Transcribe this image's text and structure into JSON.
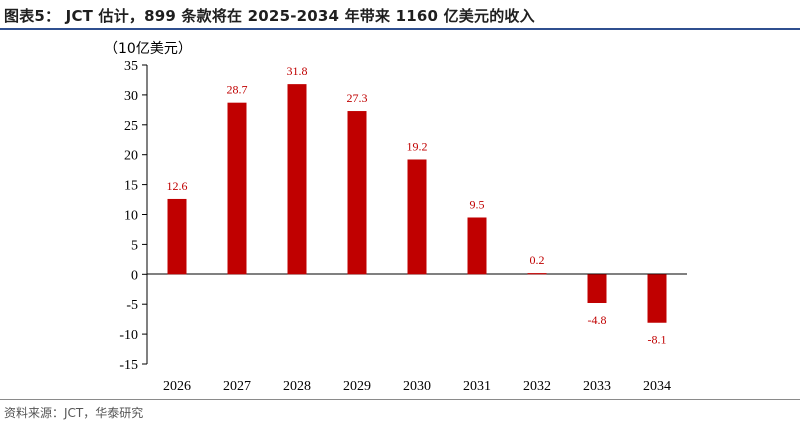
{
  "header": {
    "title": "图表5： JCT 估计，899 条款将在 2025-2034 年带来 1160 亿美元的收入"
  },
  "footer": {
    "source": "资料来源：JCT，华泰研究"
  },
  "chart_data": {
    "type": "bar",
    "title": "图表5： JCT 估计，899 条款将在 2025-2034 年带来 1160 亿美元的收入",
    "ylabel": "（10亿美元）",
    "xlabel": "",
    "ylim": [
      -15,
      35
    ],
    "yticks": [
      35,
      30,
      25,
      20,
      15,
      10,
      5,
      0,
      -5,
      -10,
      -15
    ],
    "ytick_labels": [
      "35",
      "30",
      "25",
      "20",
      "15",
      "10",
      "5",
      "0",
      "-5",
      "-10",
      "-15"
    ],
    "categories": [
      "2026",
      "2027",
      "2028",
      "2029",
      "2030",
      "2031",
      "2032",
      "2033",
      "2034"
    ],
    "values": [
      12.6,
      28.7,
      31.8,
      27.3,
      19.2,
      9.5,
      0.2,
      -4.8,
      -8.1
    ],
    "data_labels": [
      "12.6",
      "28.7",
      "31.8",
      "27.3",
      "19.2",
      "9.5",
      "0.2",
      "-4.8",
      "-8.1"
    ],
    "bar_color": "#c00000",
    "label_color": "#c00000",
    "grid": false,
    "legend": "none"
  }
}
